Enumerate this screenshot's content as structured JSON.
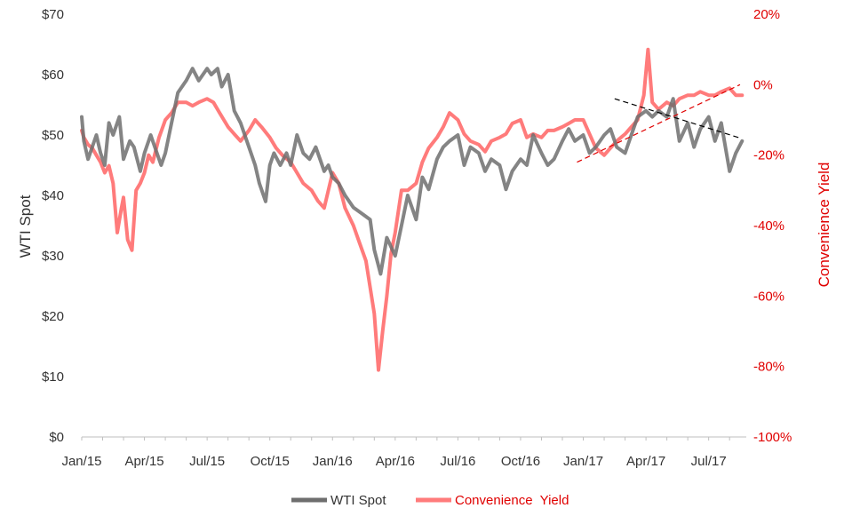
{
  "chart_data": {
    "type": "line",
    "title": "",
    "ylabel_left": "WTI Spot",
    "ylabel_right": "Convenience Yield",
    "ylim_left": [
      0,
      70
    ],
    "ylim_right": [
      -100,
      20
    ],
    "yticks_left": [
      "$0",
      "$10",
      "$20",
      "$30",
      "$40",
      "$50",
      "$60",
      "$70"
    ],
    "yticks_right": [
      "-100%",
      "-80%",
      "-60%",
      "-40%",
      "-20%",
      "0%",
      "20%"
    ],
    "xticks": [
      "Jan/15",
      "Apr/15",
      "Jul/15",
      "Oct/15",
      "Jan/16",
      "Apr/16",
      "Jul/16",
      "Oct/16",
      "Jan/17",
      "Apr/17",
      "Jul/17"
    ],
    "grid": false,
    "legend_position": "bottom",
    "colors": {
      "wti": "#6e6e6e",
      "cy": "#ff7b7b",
      "trend_wti": "#000000",
      "trend_cy": "#e00000",
      "overlap": "#c0393b"
    },
    "series": [
      {
        "name": "WTI Spot",
        "axis": "left",
        "x": [
          0,
          0.1,
          0.3,
          0.5,
          0.7,
          0.9,
          1.1,
          1.3,
          1.5,
          1.8,
          2.0,
          2.3,
          2.5,
          2.8,
          3.0,
          3.3,
          3.5,
          3.8,
          4.0,
          4.3,
          4.6,
          5.0,
          5.3,
          5.6,
          6.0,
          6.2,
          6.5,
          6.7,
          7.0,
          7.3,
          7.6,
          8.0,
          8.3,
          8.5,
          8.8,
          9.0,
          9.2,
          9.5,
          9.8,
          10.0,
          10.3,
          10.6,
          10.9,
          11.2,
          11.4,
          11.6,
          11.8,
          12.0,
          12.3,
          12.6,
          13.0,
          13.4,
          13.8,
          14.0,
          14.3,
          14.6,
          15.0,
          15.3,
          15.6,
          16.0,
          16.3,
          16.6,
          17.0,
          17.3,
          17.6,
          18.0,
          18.3,
          18.6,
          19.0,
          19.3,
          19.6,
          20.0,
          20.3,
          20.6,
          21.0,
          21.3,
          21.6,
          22.0,
          22.3,
          22.6,
          23.0,
          23.3,
          23.6,
          24.0,
          24.3,
          24.6,
          25.0,
          25.3,
          25.6,
          26.0,
          26.3,
          26.6,
          27.0,
          27.3,
          27.6,
          28.0,
          28.3,
          28.6,
          29.0,
          29.3,
          29.6,
          30.0,
          30.3,
          30.6,
          31.0,
          31.3,
          31.6
        ],
        "values": [
          53,
          49,
          46,
          48,
          50,
          47,
          45,
          52,
          50,
          53,
          46,
          49,
          48,
          44,
          47,
          50,
          48,
          45,
          47,
          52,
          57,
          59,
          61,
          59,
          61,
          60,
          61,
          58,
          60,
          54,
          52,
          48,
          45,
          42,
          39,
          45,
          47,
          45,
          47,
          45,
          50,
          47,
          46,
          48,
          46,
          44,
          45,
          43,
          42,
          40,
          38,
          37,
          36,
          31,
          27,
          33,
          30,
          35,
          40,
          36,
          43,
          41,
          46,
          48,
          49,
          50,
          45,
          48,
          47,
          44,
          46,
          45,
          41,
          44,
          46,
          45,
          50,
          47,
          45,
          46,
          49,
          51,
          49,
          50,
          47,
          48,
          50,
          51,
          48,
          47,
          50,
          53,
          54,
          53,
          54,
          53,
          56,
          49,
          52,
          48,
          51,
          53,
          49,
          52,
          44,
          47,
          49
        ]
      },
      {
        "name": "Convenience  Yield",
        "axis": "right",
        "x": [
          0,
          0.1,
          0.3,
          0.5,
          0.7,
          0.9,
          1.1,
          1.3,
          1.5,
          1.7,
          1.9,
          2.0,
          2.2,
          2.4,
          2.6,
          2.8,
          3.0,
          3.2,
          3.4,
          3.7,
          4.0,
          4.3,
          4.6,
          5.0,
          5.3,
          5.6,
          6.0,
          6.3,
          6.6,
          7.0,
          7.3,
          7.6,
          8.0,
          8.3,
          8.6,
          9.0,
          9.3,
          9.6,
          10.0,
          10.3,
          10.6,
          11.0,
          11.3,
          11.6,
          12.0,
          12.3,
          12.6,
          13.0,
          13.3,
          13.6,
          14.0,
          14.2,
          14.4,
          14.6,
          14.8,
          15.0,
          15.3,
          15.6,
          16.0,
          16.3,
          16.6,
          17.0,
          17.3,
          17.6,
          18.0,
          18.3,
          18.6,
          19.0,
          19.3,
          19.6,
          20.0,
          20.3,
          20.6,
          21.0,
          21.3,
          21.6,
          22.0,
          22.3,
          22.6,
          23.0,
          23.3,
          23.6,
          24.0,
          24.3,
          24.6,
          25.0,
          25.3,
          25.6,
          26.0,
          26.3,
          26.6,
          26.9,
          27.1,
          27.3,
          27.6,
          28.0,
          28.3,
          28.6,
          29.0,
          29.3,
          29.6,
          30.0,
          30.3,
          30.6,
          31.0,
          31.3,
          31.6
        ],
        "values": [
          -13,
          -15,
          -17,
          -18,
          -20,
          -22,
          -25,
          -23,
          -28,
          -42,
          -35,
          -32,
          -44,
          -47,
          -30,
          -28,
          -25,
          -20,
          -22,
          -15,
          -10,
          -8,
          -5,
          -5,
          -6,
          -5,
          -4,
          -5,
          -8,
          -12,
          -14,
          -16,
          -13,
          -10,
          -12,
          -15,
          -18,
          -20,
          -22,
          -25,
          -28,
          -30,
          -33,
          -35,
          -25,
          -28,
          -35,
          -40,
          -45,
          -50,
          -65,
          -81,
          -70,
          -60,
          -48,
          -42,
          -30,
          -30,
          -28,
          -22,
          -18,
          -15,
          -12,
          -8,
          -10,
          -14,
          -16,
          -17,
          -19,
          -16,
          -15,
          -14,
          -11,
          -10,
          -15,
          -14,
          -15,
          -13,
          -13,
          -12,
          -11,
          -10,
          -10,
          -14,
          -18,
          -20,
          -18,
          -16,
          -14,
          -12,
          -10,
          -3,
          10,
          -5,
          -7,
          -5,
          -6,
          -4,
          -3,
          -3,
          -2,
          -3,
          -3,
          -2,
          -1,
          -3,
          -3
        ]
      }
    ],
    "trendlines": [
      {
        "axis": "left",
        "x": [
          25.5,
          31.5
        ],
        "values": [
          56,
          49.5
        ]
      },
      {
        "axis": "right",
        "x": [
          23.7,
          31.5
        ],
        "values": [
          -22,
          0
        ]
      }
    ]
  },
  "legend": {
    "wti_label": "WTI Spot",
    "cy_label": "Convenience  Yield"
  }
}
